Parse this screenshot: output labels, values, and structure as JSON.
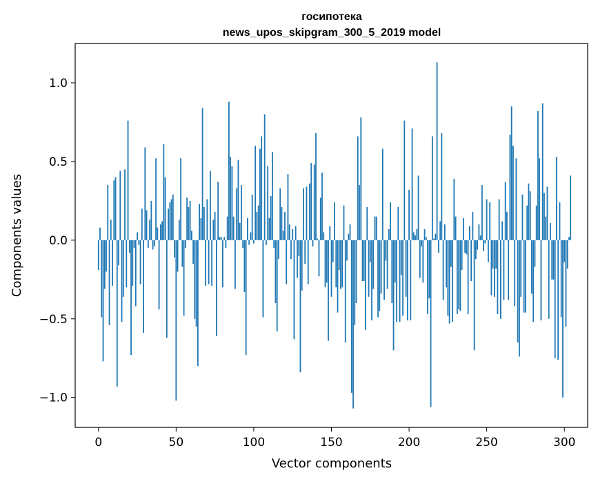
{
  "chart_data": {
    "type": "bar",
    "title": "госипотека",
    "subtitle": "news_upos_skipgram_300_5_2019 model",
    "xlabel": "Vector components",
    "ylabel": "Components values",
    "xlim": [
      -15,
      315
    ],
    "ylim": [
      -1.19,
      1.25
    ],
    "xticks": [
      0,
      50,
      100,
      150,
      200,
      250,
      300
    ],
    "xtick_labels": [
      "0",
      "50",
      "100",
      "150",
      "200",
      "250",
      "300"
    ],
    "yticks": [
      -1.0,
      -0.5,
      0.0,
      0.5,
      1.0
    ],
    "ytick_labels": [
      "−1.0",
      "−0.5",
      "0.0",
      "0.5",
      "1.0"
    ],
    "bar_color": "#1f77b4",
    "values": [
      -0.19,
      0.08,
      -0.49,
      -0.77,
      -0.31,
      -0.2,
      0.35,
      -0.54,
      0.13,
      -0.29,
      0.38,
      0.4,
      -0.93,
      -0.16,
      0.44,
      -0.52,
      -0.36,
      0.45,
      -0.3,
      0.76,
      -0.08,
      -0.73,
      -0.29,
      -0.05,
      -0.42,
      0.05,
      -0.03,
      -0.28,
      0.2,
      -0.59,
      0.59,
      0.19,
      -0.05,
      0.13,
      0.25,
      -0.06,
      -0.04,
      0.52,
      0.08,
      -0.44,
      0.1,
      0.12,
      0.61,
      0.4,
      -0.62,
      0.2,
      0.24,
      0.26,
      0.29,
      -0.11,
      -1.02,
      -0.2,
      0.13,
      0.52,
      -0.17,
      -0.48,
      -0.05,
      0.27,
      0.21,
      0.25,
      0.06,
      -0.15,
      -0.5,
      -0.55,
      -0.8,
      0.23,
      0.14,
      0.84,
      0.21,
      -0.29,
      0.26,
      -0.28,
      0.44,
      -0.29,
      0.13,
      0.18,
      -0.61,
      0.37,
      0.02,
      0.02,
      -0.3,
      0.02,
      -0.05,
      0.15,
      0.88,
      0.53,
      0.47,
      0.15,
      -0.31,
      0.33,
      0.51,
      0.11,
      0.35,
      -0.05,
      -0.33,
      -0.73,
      0.14,
      -0.03,
      0.05,
      0.29,
      -0.02,
      0.6,
      0.18,
      0.22,
      0.58,
      0.66,
      -0.49,
      0.8,
      -0.03,
      0.47,
      0.14,
      0.28,
      0.56,
      -0.05,
      -0.4,
      -0.58,
      -0.12,
      0.33,
      0.21,
      0.06,
      0.18,
      -0.28,
      0.42,
      0.1,
      -0.12,
      0.07,
      -0.63,
      0.09,
      -0.24,
      -0.1,
      -0.84,
      -0.32,
      0.33,
      -0.15,
      0.34,
      -0.28,
      0.36,
      0.49,
      -0.04,
      0.48,
      0.68,
      0.01,
      -0.23,
      0.27,
      0.43,
      0.05,
      -0.3,
      -0.27,
      -0.64,
      0.09,
      -0.36,
      -0.14,
      0.24,
      -0.3,
      -0.46,
      -0.19,
      -0.31,
      -0.3,
      0.22,
      -0.65,
      -0.13,
      0.04,
      0.1,
      -0.97,
      -1.07,
      -0.54,
      -0.4,
      0.66,
      0.35,
      0.78,
      -0.26,
      -0.26,
      -0.57,
      0.21,
      -0.36,
      -0.14,
      -0.51,
      -0.31,
      0.15,
      0.15,
      -0.49,
      -0.45,
      -0.34,
      0.58,
      -0.38,
      -0.13,
      -0.31,
      0.07,
      0.24,
      -0.4,
      -0.7,
      -0.27,
      -0.52,
      0.21,
      -0.52,
      -0.22,
      -0.48,
      0.76,
      -0.36,
      -0.51,
      0.32,
      -0.51,
      0.71,
      0.05,
      0.03,
      0.07,
      0.41,
      -0.24,
      -0.04,
      -0.27,
      0.07,
      0.02,
      -0.47,
      -0.37,
      -1.06,
      0.66,
      0.01,
      0.04,
      1.13,
      -0.08,
      0.12,
      0.68,
      -0.38,
      0.1,
      -0.3,
      -0.48,
      -0.53,
      -0.17,
      -0.52,
      0.39,
      0.15,
      -0.47,
      -0.44,
      -0.45,
      -0.19,
      0.14,
      -0.08,
      -0.09,
      -0.47,
      0.09,
      -0.26,
      0.18,
      -0.7,
      -0.12,
      -0.06,
      0.1,
      0.03,
      0.35,
      -0.07,
      -0.02,
      0.26,
      -0.14,
      0.24,
      -0.35,
      -0.18,
      -0.36,
      -0.18,
      -0.47,
      0.26,
      -0.5,
      0.12,
      -0.38,
      0.37,
      0.18,
      -0.38,
      0.67,
      0.85,
      0.6,
      -0.42,
      0.52,
      -0.65,
      -0.74,
      -0.36,
      0.29,
      -0.46,
      -0.46,
      0.22,
      0.36,
      0.31,
      -0.34,
      -0.52,
      -0.17,
      0.22,
      0.82,
      0.52,
      -0.51,
      0.87,
      0.3,
      0.15,
      0.34,
      -0.5,
      0.11,
      -0.25,
      -0.25,
      -0.75,
      0.53,
      -0.76,
      0.24,
      -0.49,
      -1.0,
      -0.14,
      -0.55,
      -0.18,
      0.02,
      0.41
    ]
  }
}
